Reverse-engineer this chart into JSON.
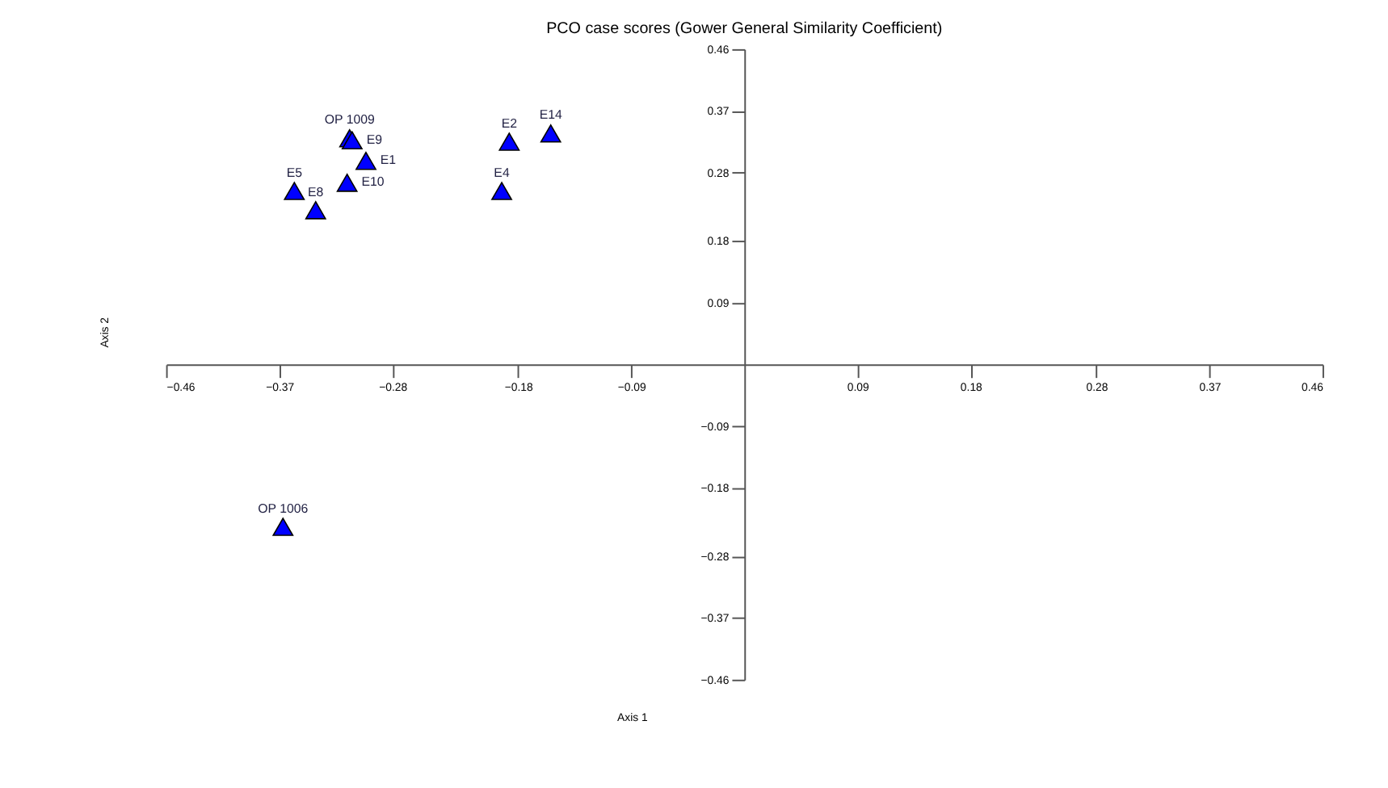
{
  "chart_data": {
    "type": "scatter",
    "title": "PCO case scores (Gower General Similarity Coefficient)",
    "xlabel": "Axis 1",
    "ylabel": "Axis 2",
    "xlim": [
      -0.46,
      0.46
    ],
    "ylim": [
      -0.46,
      0.46
    ],
    "xticks": [
      -0.46,
      -0.37,
      -0.28,
      -0.18,
      -0.09,
      0.09,
      0.18,
      0.28,
      0.37,
      0.46
    ],
    "yticks": [
      -0.46,
      -0.37,
      -0.28,
      -0.18,
      -0.09,
      0.09,
      0.18,
      0.28,
      0.37,
      0.46
    ],
    "grid": false,
    "legend": false,
    "marker": "triangle",
    "series": [
      {
        "name": "OP 1009",
        "color": "#0000ff",
        "x": [
          -0.314
        ],
        "values": [
          0.33
        ]
      },
      {
        "name": "E9",
        "color": "#0000ff",
        "x": [
          -0.312
        ],
        "values": [
          0.327
        ]
      },
      {
        "name": "E1",
        "color": "#0000ff",
        "x": [
          -0.301
        ],
        "values": [
          0.297
        ]
      },
      {
        "name": "E5",
        "color": "#0000ff",
        "x": [
          -0.358
        ],
        "values": [
          0.253
        ]
      },
      {
        "name": "E8",
        "color": "#0000ff",
        "x": [
          -0.341
        ],
        "values": [
          0.225
        ]
      },
      {
        "name": "E10",
        "color": "#0000ff",
        "x": [
          -0.316
        ],
        "values": [
          0.265
        ]
      },
      {
        "name": "E2",
        "color": "#0000ff",
        "x": [
          -0.187
        ],
        "values": [
          0.325
        ]
      },
      {
        "name": "E14",
        "color": "#0000ff",
        "x": [
          -0.154
        ],
        "values": [
          0.337
        ]
      },
      {
        "name": "E4",
        "color": "#0000ff",
        "x": [
          -0.193
        ],
        "values": [
          0.253
        ]
      },
      {
        "name": "OP 1006",
        "color": "#0000ff",
        "x": [
          -0.367
        ],
        "values": [
          -0.237
        ]
      }
    ]
  }
}
